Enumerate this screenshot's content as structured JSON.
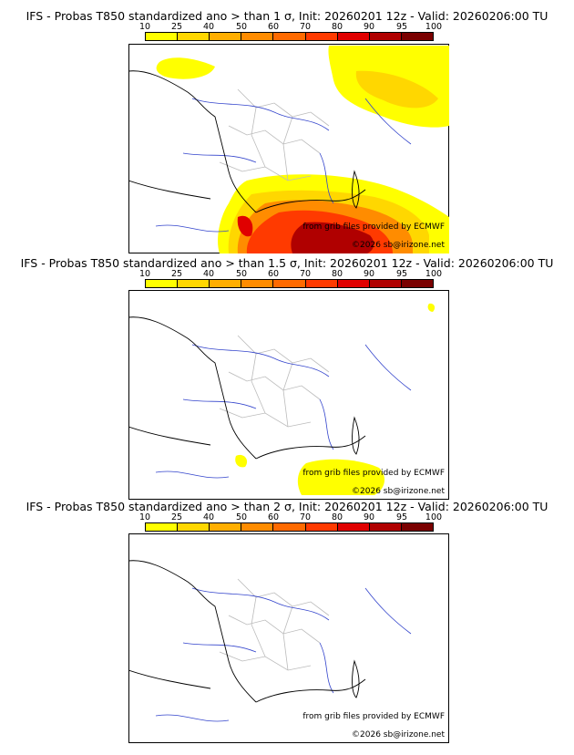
{
  "colorbar": {
    "ticks": [
      "10",
      "25",
      "40",
      "50",
      "60",
      "70",
      "80",
      "90",
      "95",
      "100"
    ],
    "colors": [
      "#ffff00",
      "#ffd700",
      "#ffae00",
      "#ff8c00",
      "#ff6a00",
      "#ff3a00",
      "#e00000",
      "#b00000",
      "#7a0000"
    ]
  },
  "panels": [
    {
      "title": "IFS - Probas T850  standardized ano > than 1 σ, Init: 20260201 12z - Valid: 20260206:00 TU",
      "credit": "from grib files provided by ECMWF",
      "copyright": "©2026 sb@irizone.net"
    },
    {
      "title": "IFS - Probas T850  standardized ano > than 1.5 σ, Init: 20260201 12z - Valid: 20260206:00 TU",
      "credit": "from grib files provided by ECMWF",
      "copyright": "©2026 sb@irizone.net"
    },
    {
      "title": "IFS - Probas T850  standardized ano > than 2 σ, Init: 20260201 12z - Valid: 20260206:00 TU",
      "credit": "from grib files provided by ECMWF",
      "copyright": "©2026 sb@irizone.net"
    }
  ]
}
